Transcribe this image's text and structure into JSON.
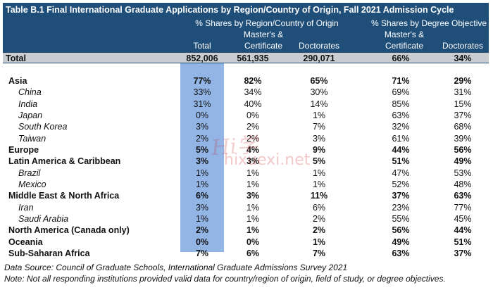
{
  "title": "Table B.1 Final International Graduate Applications by Region/Country of Origin, Fall 2021 Admission Cycle",
  "header": {
    "group_region": "% Shares by Region/Country of Origin",
    "group_degree": "% Shares by Degree Objective",
    "col_total": "Total",
    "col_masters_line1": "Master's &",
    "col_masters_line2": "Certificate",
    "col_doctorates": "Doctorates",
    "col_masters2_line1": "Master's &",
    "col_masters2_line2": "Certificate",
    "col_doctorates2": "Doctorates"
  },
  "total": {
    "label": "Total",
    "total": "852,006",
    "masters": "561,935",
    "doctorates": "290,071",
    "share_masters": "66%",
    "share_doctorates": "34%"
  },
  "rows": [
    {
      "label": "Asia",
      "bold": true,
      "v": [
        "77%",
        "82%",
        "65%",
        "71%",
        "29%"
      ]
    },
    {
      "label": "China",
      "bold": false,
      "v": [
        "33%",
        "34%",
        "30%",
        "69%",
        "31%"
      ]
    },
    {
      "label": "India",
      "bold": false,
      "v": [
        "31%",
        "40%",
        "14%",
        "85%",
        "15%"
      ]
    },
    {
      "label": "Japan",
      "bold": false,
      "v": [
        "0%",
        "0%",
        "1%",
        "63%",
        "37%"
      ]
    },
    {
      "label": "South Korea",
      "bold": false,
      "v": [
        "3%",
        "2%",
        "7%",
        "32%",
        "68%"
      ]
    },
    {
      "label": "Taiwan",
      "bold": false,
      "v": [
        "2%",
        "2%",
        "3%",
        "61%",
        "39%"
      ]
    },
    {
      "label": "Europe",
      "bold": true,
      "v": [
        "5%",
        "4%",
        "9%",
        "44%",
        "56%"
      ]
    },
    {
      "label": "Latin America & Caribbean",
      "bold": true,
      "v": [
        "3%",
        "3%",
        "5%",
        "51%",
        "49%"
      ]
    },
    {
      "label": "Brazil",
      "bold": false,
      "v": [
        "1%",
        "1%",
        "1%",
        "47%",
        "53%"
      ]
    },
    {
      "label": "Mexico",
      "bold": false,
      "v": [
        "1%",
        "1%",
        "1%",
        "52%",
        "48%"
      ]
    },
    {
      "label": "Middle East & North Africa",
      "bold": true,
      "v": [
        "6%",
        "3%",
        "11%",
        "37%",
        "63%"
      ]
    },
    {
      "label": "Iran",
      "bold": false,
      "v": [
        "3%",
        "1%",
        "6%",
        "23%",
        "77%"
      ]
    },
    {
      "label": "Saudi Arabia",
      "bold": false,
      "v": [
        "1%",
        "1%",
        "2%",
        "55%",
        "45%"
      ]
    },
    {
      "label": "North America (Canada only)",
      "bold": true,
      "v": [
        "2%",
        "1%",
        "2%",
        "56%",
        "44%"
      ]
    },
    {
      "label": "Oceania",
      "bold": true,
      "v": [
        "0%",
        "0%",
        "1%",
        "49%",
        "51%"
      ]
    },
    {
      "label": "Sub-Saharan Africa",
      "bold": true,
      "v": [
        "7%",
        "6%",
        "7%",
        "63%",
        "37%"
      ]
    }
  ],
  "watermark": {
    "line1": "Hi学",
    "line2": "hixuexi.net"
  },
  "footer": {
    "source": "Data Source: Council of Graduate Schools, International Graduate Admissions Survey 2021",
    "note": "Note: Not all responding institutions provided valid data for country/region of origin, field of study, or degree objectives."
  }
}
